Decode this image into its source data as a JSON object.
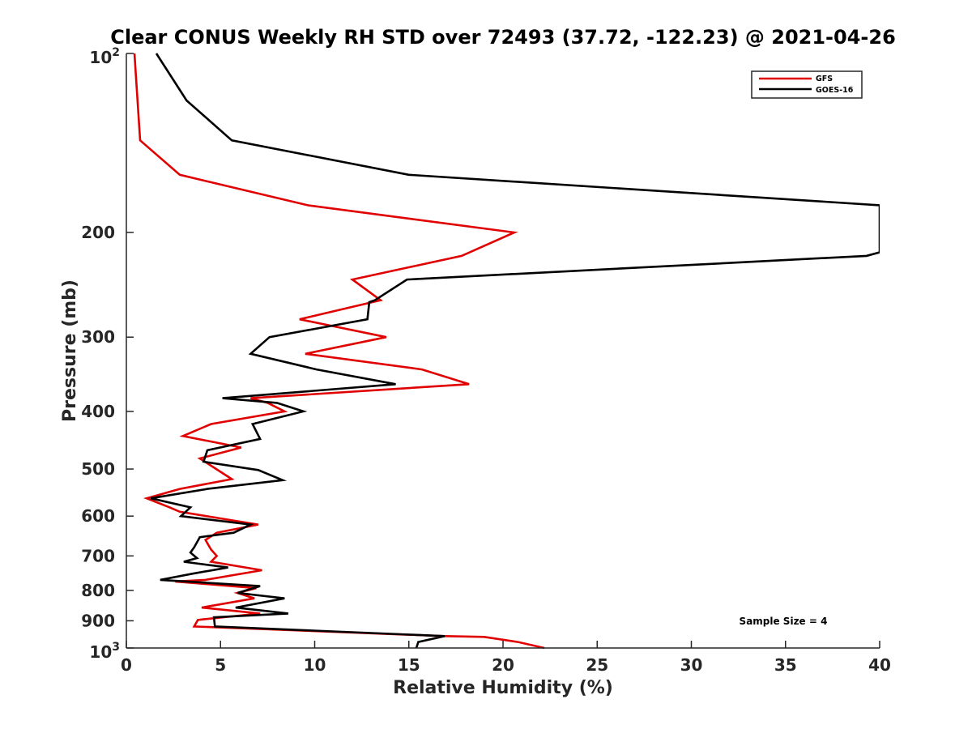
{
  "chart_data": {
    "type": "line",
    "title": "Clear CONUS Weekly RH STD over 72493 (37.72, -122.23) @ 2021-04-26",
    "xlabel": "Relative Humidity (%)",
    "ylabel": "Pressure (mb)",
    "xlim": [
      0,
      40
    ],
    "ylim": [
      100,
      1000
    ],
    "yscale": "log",
    "yreversed": true,
    "grid": false,
    "legend_position": "top-right",
    "x_ticks": [
      "0",
      "5",
      "10",
      "15",
      "20",
      "25",
      "30",
      "35",
      "40"
    ],
    "x_tick_values": [
      0,
      5,
      10,
      15,
      20,
      25,
      30,
      35,
      40
    ],
    "y_ticks": [
      {
        "value": 100,
        "base": "10",
        "exp": "2",
        "label": ""
      },
      {
        "value": 200,
        "label": "200"
      },
      {
        "value": 300,
        "label": "300"
      },
      {
        "value": 400,
        "label": "400"
      },
      {
        "value": 500,
        "label": "500"
      },
      {
        "value": 600,
        "label": "600"
      },
      {
        "value": 700,
        "label": "700"
      },
      {
        "value": 800,
        "label": "800"
      },
      {
        "value": 900,
        "label": "900"
      },
      {
        "value": 1000,
        "base": "10",
        "exp": "3",
        "label": ""
      }
    ],
    "annotation": "Sample Size = 4",
    "series": [
      {
        "name": "GFS",
        "color": "#e00000",
        "points": [
          [
            0.43,
            100
          ],
          [
            0.73,
            140
          ],
          [
            2.84,
            160
          ],
          [
            9.63,
            180
          ],
          [
            20.6,
            200
          ],
          [
            17.8,
            219
          ],
          [
            12.0,
            240
          ],
          [
            13.5,
            260
          ],
          [
            9.2,
            280
          ],
          [
            13.8,
            300
          ],
          [
            9.5,
            320
          ],
          [
            15.7,
            340
          ],
          [
            18.2,
            360
          ],
          [
            6.6,
            380
          ],
          [
            7.5,
            387
          ],
          [
            8.4,
            400
          ],
          [
            4.5,
            420
          ],
          [
            3.0,
            440
          ],
          [
            6.1,
            460
          ],
          [
            3.9,
            480
          ],
          [
            5.6,
            520
          ],
          [
            2.84,
            540
          ],
          [
            1.08,
            560
          ],
          [
            2.3,
            580
          ],
          [
            2.84,
            590
          ],
          [
            7.0,
            620
          ],
          [
            4.8,
            640
          ],
          [
            4.2,
            658
          ],
          [
            4.5,
            683
          ],
          [
            4.8,
            700
          ],
          [
            4.5,
            716
          ],
          [
            7.2,
            740
          ],
          [
            4.2,
            768
          ],
          [
            2.6,
            773
          ],
          [
            6.9,
            793
          ],
          [
            5.9,
            808
          ],
          [
            6.8,
            825
          ],
          [
            4.0,
            855
          ],
          [
            7.1,
            875
          ],
          [
            3.8,
            897
          ],
          [
            3.6,
            920
          ],
          [
            16.9,
            955
          ],
          [
            19.0,
            958
          ],
          [
            20.8,
            977
          ],
          [
            22.2,
            1000
          ]
        ]
      },
      {
        "name": "GOES-16",
        "color": "#000000",
        "points": [
          [
            1.59,
            100
          ],
          [
            3.2,
            120
          ],
          [
            5.6,
            140
          ],
          [
            15.0,
            160
          ],
          [
            40.0,
            180
          ],
          [
            40.0,
            216
          ],
          [
            39.3,
            219
          ],
          [
            14.9,
            240
          ],
          [
            13.2,
            260
          ],
          [
            12.9,
            262
          ],
          [
            12.8,
            280
          ],
          [
            7.6,
            300
          ],
          [
            6.6,
            320
          ],
          [
            10.1,
            340
          ],
          [
            14.3,
            360
          ],
          [
            5.1,
            380
          ],
          [
            8.0,
            387
          ],
          [
            9.4,
            400
          ],
          [
            6.7,
            420
          ],
          [
            7.1,
            445
          ],
          [
            4.3,
            465
          ],
          [
            4.1,
            486
          ],
          [
            7.0,
            502
          ],
          [
            8.3,
            522
          ],
          [
            4.3,
            540
          ],
          [
            1.3,
            560
          ],
          [
            3.4,
            580
          ],
          [
            2.9,
            600
          ],
          [
            6.6,
            620
          ],
          [
            5.7,
            640
          ],
          [
            3.9,
            651
          ],
          [
            3.6,
            677
          ],
          [
            3.4,
            691
          ],
          [
            3.75,
            706
          ],
          [
            3.05,
            716
          ],
          [
            5.4,
            732
          ],
          [
            3.5,
            750
          ],
          [
            1.8,
            768
          ],
          [
            7.1,
            787
          ],
          [
            5.9,
            808
          ],
          [
            8.4,
            825
          ],
          [
            5.8,
            855
          ],
          [
            8.6,
            875
          ],
          [
            4.65,
            888
          ],
          [
            4.7,
            920
          ],
          [
            16.9,
            955
          ],
          [
            15.5,
            977
          ],
          [
            15.4,
            1000
          ]
        ]
      }
    ]
  }
}
